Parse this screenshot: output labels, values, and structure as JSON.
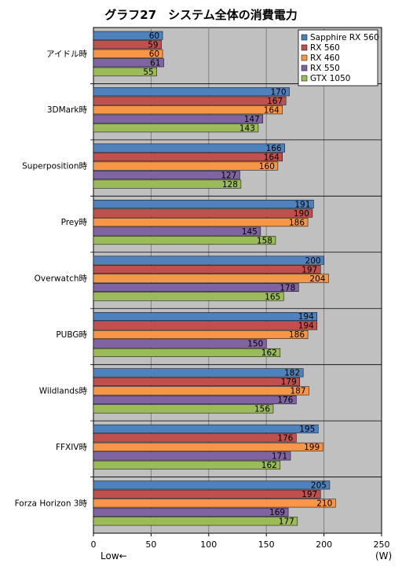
{
  "chart_data": {
    "type": "bar",
    "orientation": "horizontal",
    "title": "グラフ27　システム全体の消費電力",
    "categories": [
      "アイドル時",
      "3DMark時",
      "Superposition時",
      "Prey時",
      "Overwatch時",
      "PUBG時",
      "Wildlands時",
      "FFXIV時",
      "Forza Horizon 3時"
    ],
    "series": [
      {
        "name": "Sapphire RX 560",
        "color": "#4f81bd",
        "values": [
          60,
          170,
          166,
          191,
          200,
          194,
          182,
          195,
          205
        ]
      },
      {
        "name": "RX 560",
        "color": "#c0504d",
        "values": [
          59,
          167,
          164,
          190,
          197,
          194,
          179,
          176,
          197
        ]
      },
      {
        "name": "RX 460",
        "color": "#f79646",
        "values": [
          60,
          164,
          160,
          186,
          204,
          186,
          187,
          199,
          210
        ]
      },
      {
        "name": "RX 550",
        "color": "#8064a2",
        "values": [
          61,
          147,
          127,
          145,
          178,
          150,
          176,
          171,
          169
        ]
      },
      {
        "name": "GTX 1050",
        "color": "#9bbb59",
        "values": [
          55,
          143,
          128,
          158,
          165,
          162,
          156,
          162,
          177
        ]
      }
    ],
    "xlim": [
      0,
      250
    ],
    "xticks": [
      0,
      50,
      100,
      150,
      200,
      250
    ],
    "xlabel_left": "Low←",
    "xlabel_right": "(W)",
    "grid": true,
    "legend_position": "top-right",
    "plot_background": "#c0c0c0"
  }
}
